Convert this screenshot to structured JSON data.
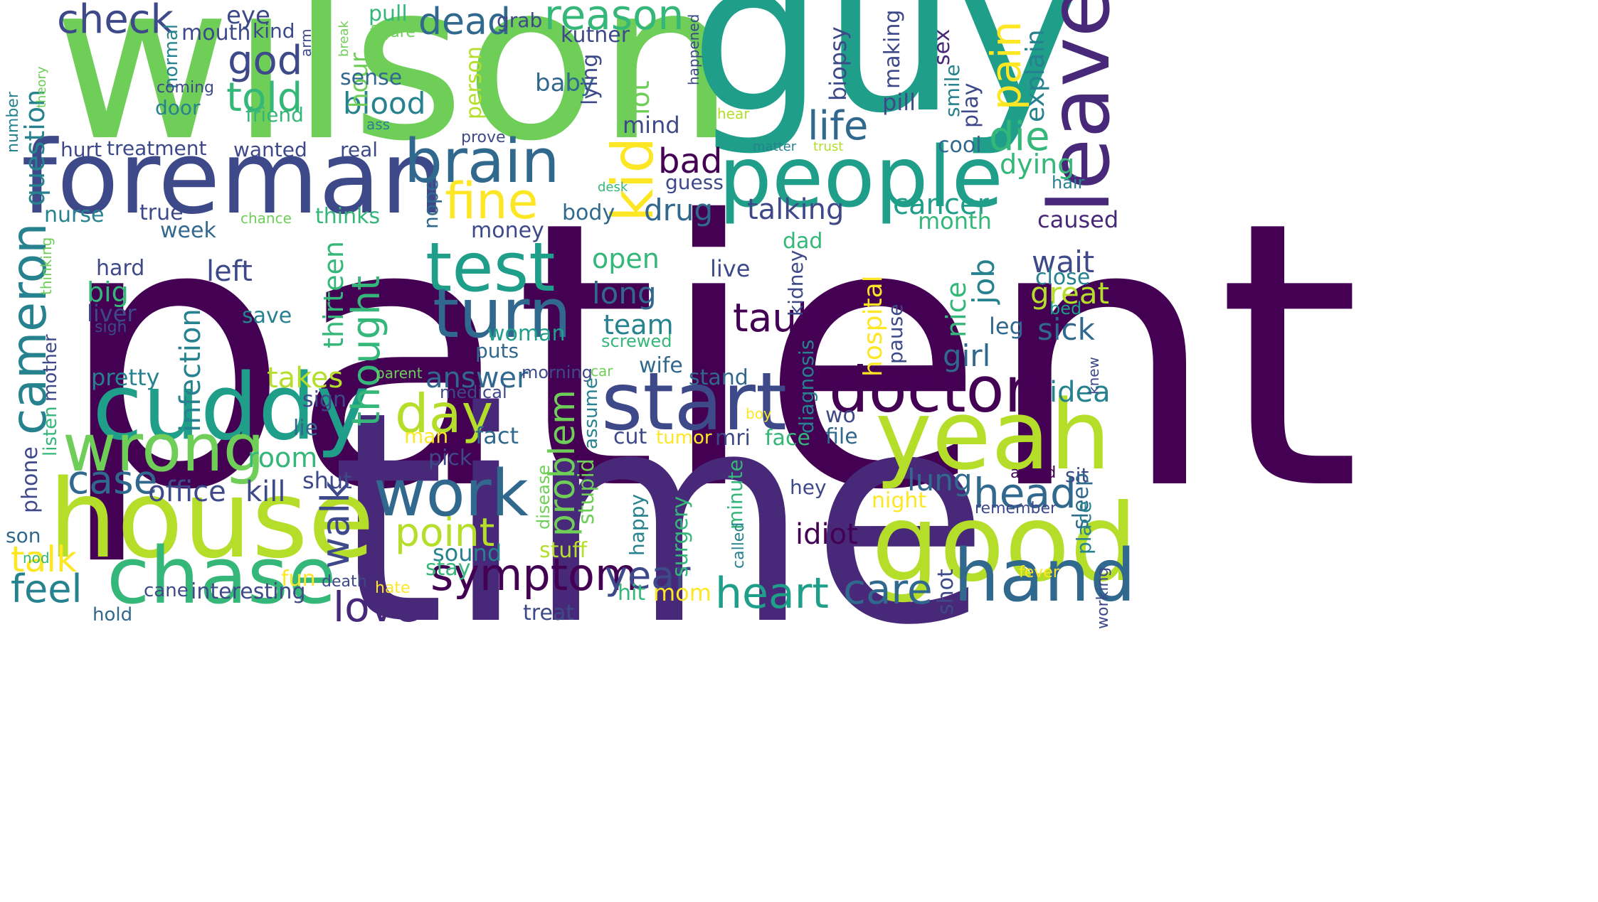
{
  "palette": [
    "#440154",
    "#482878",
    "#3e4989",
    "#31688e",
    "#26828e",
    "#1f9e89",
    "#35b779",
    "#6ece58",
    "#b5de2b",
    "#fde725"
  ],
  "words": [
    {
      "text": "patient",
      "color": "#440154"
    },
    {
      "text": "time",
      "color": "#482878"
    },
    {
      "text": "wilson",
      "color": "#6ece58"
    },
    {
      "text": "guy",
      "color": "#1f9e89"
    },
    {
      "text": "foreman",
      "color": "#3e4989"
    },
    {
      "text": "people",
      "color": "#1f9e89"
    },
    {
      "text": "leave",
      "color": "#482878"
    },
    {
      "text": "house",
      "color": "#b5de2b"
    },
    {
      "text": "cuddy",
      "color": "#1f9e89"
    },
    {
      "text": "start",
      "color": "#3e4989"
    },
    {
      "text": "yeah",
      "color": "#b5de2b"
    },
    {
      "text": "good",
      "color": "#b5de2b"
    },
    {
      "text": "chase",
      "color": "#35b779"
    },
    {
      "text": "work",
      "color": "#31688e"
    },
    {
      "text": "hand",
      "color": "#31688e"
    },
    {
      "text": "wrong",
      "color": "#6ece58"
    },
    {
      "text": "doctor",
      "color": "#440154"
    },
    {
      "text": "test",
      "color": "#1f9e89"
    },
    {
      "text": "turn",
      "color": "#31688e"
    },
    {
      "text": "brain",
      "color": "#31688e"
    },
    {
      "text": "cameron",
      "color": "#26828e"
    },
    {
      "text": "kid",
      "color": "#fde725"
    },
    {
      "text": "fine",
      "color": "#fde725"
    },
    {
      "text": "day",
      "color": "#b5de2b"
    },
    {
      "text": "symptom",
      "color": "#440154"
    },
    {
      "text": "heart",
      "color": "#1f9e89"
    },
    {
      "text": "care",
      "color": "#31688e"
    },
    {
      "text": "head",
      "color": "#31688e"
    },
    {
      "text": "year",
      "color": "#3e4989"
    },
    {
      "text": "love",
      "color": "#482878"
    },
    {
      "text": "point",
      "color": "#b5de2b"
    },
    {
      "text": "case",
      "color": "#31688e"
    },
    {
      "text": "check",
      "color": "#3e4989"
    },
    {
      "text": "reason",
      "color": "#35b779"
    },
    {
      "text": "dead",
      "color": "#31688e"
    },
    {
      "text": "god",
      "color": "#3e4989"
    },
    {
      "text": "told",
      "color": "#35b779"
    },
    {
      "text": "life",
      "color": "#31688e"
    },
    {
      "text": "die",
      "color": "#35b779"
    },
    {
      "text": "pain",
      "color": "#fde725"
    },
    {
      "text": "taub",
      "color": "#440154"
    },
    {
      "text": "thought",
      "color": "#35b779"
    },
    {
      "text": "walk",
      "color": "#3e4989"
    },
    {
      "text": "problem",
      "color": "#6ece58"
    },
    {
      "text": "feel",
      "color": "#26828e"
    },
    {
      "text": "talk",
      "color": "#fde725"
    },
    {
      "text": "infection",
      "color": "#26828e"
    },
    {
      "text": "office",
      "color": "#3e4989"
    },
    {
      "text": "kill",
      "color": "#3e4989"
    },
    {
      "text": "idiot",
      "color": "#440154"
    },
    {
      "text": "lung",
      "color": "#31688e"
    },
    {
      "text": "bad",
      "color": "#440154"
    },
    {
      "text": "blood",
      "color": "#26828e"
    },
    {
      "text": "drug",
      "color": "#31688e"
    },
    {
      "text": "talking",
      "color": "#3e4989"
    },
    {
      "text": "cancer",
      "color": "#1f9e89"
    },
    {
      "text": "wait",
      "color": "#3e4989"
    },
    {
      "text": "sick",
      "color": "#31688e"
    },
    {
      "text": "girl",
      "color": "#31688e"
    },
    {
      "text": "great",
      "color": "#b5de2b"
    },
    {
      "text": "job",
      "color": "#26828e"
    },
    {
      "text": "idea",
      "color": "#26828e"
    },
    {
      "text": "answer",
      "color": "#31688e"
    },
    {
      "text": "takes",
      "color": "#b5de2b"
    },
    {
      "text": "left",
      "color": "#3e4989"
    },
    {
      "text": "long",
      "color": "#31688e"
    },
    {
      "text": "open",
      "color": "#35b779"
    },
    {
      "text": "team",
      "color": "#26828e"
    },
    {
      "text": "thirteen",
      "color": "#35b779"
    },
    {
      "text": "hospital",
      "color": "#fde725"
    },
    {
      "text": "dying",
      "color": "#35b779"
    },
    {
      "text": "explain",
      "color": "#26828e"
    },
    {
      "text": "question",
      "color": "#26828e"
    },
    {
      "text": "room",
      "color": "#35b779"
    },
    {
      "text": "big",
      "color": "#35b779"
    },
    {
      "text": "liver",
      "color": "#3e4989"
    },
    {
      "text": "eye",
      "color": "#3e4989"
    },
    {
      "text": "mouth",
      "color": "#3e4989"
    },
    {
      "text": "kind",
      "color": "#3e4989"
    },
    {
      "text": "pull",
      "color": "#35b779"
    },
    {
      "text": "grab",
      "color": "#3e4989"
    },
    {
      "text": "kutner",
      "color": "#3e4989"
    },
    {
      "text": "hour",
      "color": "#6ece58"
    },
    {
      "text": "baby",
      "color": "#31688e"
    },
    {
      "text": "sense",
      "color": "#31688e"
    },
    {
      "text": "lot",
      "color": "#6ece58"
    },
    {
      "text": "mind",
      "color": "#3e4989"
    },
    {
      "text": "lying",
      "color": "#3e4989"
    },
    {
      "text": "biopsy",
      "color": "#3e4989"
    },
    {
      "text": "making",
      "color": "#3e4989"
    },
    {
      "text": "pill",
      "color": "#3e4989"
    },
    {
      "text": "sex",
      "color": "#482878"
    },
    {
      "text": "smile",
      "color": "#26828e"
    },
    {
      "text": "play",
      "color": "#3e4989"
    },
    {
      "text": "cool",
      "color": "#31688e"
    },
    {
      "text": "hair",
      "color": "#26828e"
    },
    {
      "text": "caused",
      "color": "#482878"
    },
    {
      "text": "month",
      "color": "#35b779"
    },
    {
      "text": "close",
      "color": "#26828e"
    },
    {
      "text": "bed",
      "color": "#1f9e89"
    },
    {
      "text": "leg",
      "color": "#31688e"
    },
    {
      "text": "nice",
      "color": "#35b779"
    },
    {
      "text": "pause",
      "color": "#3e4989"
    },
    {
      "text": "diagnosis",
      "color": "#26828e"
    },
    {
      "text": "kidney",
      "color": "#3e4989"
    },
    {
      "text": "live",
      "color": "#3e4989"
    },
    {
      "text": "dad",
      "color": "#35b779"
    },
    {
      "text": "body",
      "color": "#31688e"
    },
    {
      "text": "money",
      "color": "#3e4989"
    },
    {
      "text": "guess",
      "color": "#3e4989"
    },
    {
      "text": "nope",
      "color": "#31688e"
    },
    {
      "text": "thinks",
      "color": "#35b779"
    },
    {
      "text": "true",
      "color": "#3e4989"
    },
    {
      "text": "week",
      "color": "#31688e"
    },
    {
      "text": "nurse",
      "color": "#26828e"
    },
    {
      "text": "hard",
      "color": "#3e4989"
    },
    {
      "text": "save",
      "color": "#26828e"
    },
    {
      "text": "woman",
      "color": "#1f9e89"
    },
    {
      "text": "puts",
      "color": "#31688e"
    },
    {
      "text": "screwed",
      "color": "#35b779"
    },
    {
      "text": "wife",
      "color": "#31688e"
    },
    {
      "text": "stand",
      "color": "#31688e"
    },
    {
      "text": "morning",
      "color": "#3e4989"
    },
    {
      "text": "car",
      "color": "#6ece58"
    },
    {
      "text": "parent",
      "color": "#6ece58"
    },
    {
      "text": "medical",
      "color": "#3e4989"
    },
    {
      "text": "pretty",
      "color": "#26828e"
    },
    {
      "text": "sign",
      "color": "#3e4989"
    },
    {
      "text": "lie",
      "color": "#31688e"
    },
    {
      "text": "fact",
      "color": "#31688e"
    },
    {
      "text": "man",
      "color": "#fde725"
    },
    {
      "text": "pick",
      "color": "#3e4989"
    },
    {
      "text": "shut",
      "color": "#3e4989"
    },
    {
      "text": "stupid",
      "color": "#6ece58"
    },
    {
      "text": "assume",
      "color": "#26828e"
    },
    {
      "text": "cut",
      "color": "#3e4989"
    },
    {
      "text": "tumor",
      "color": "#fde725"
    },
    {
      "text": "mri",
      "color": "#3e4989"
    },
    {
      "text": "face",
      "color": "#35b779"
    },
    {
      "text": "wo",
      "color": "#3e4989"
    },
    {
      "text": "file",
      "color": "#31688e"
    },
    {
      "text": "boy",
      "color": "#fde725"
    },
    {
      "text": "asked",
      "color": "#440154"
    },
    {
      "text": "sit",
      "color": "#3e4989"
    },
    {
      "text": "sleep",
      "color": "#31688e"
    },
    {
      "text": "place",
      "color": "#26828e"
    },
    {
      "text": "remember",
      "color": "#3e4989"
    },
    {
      "text": "fever",
      "color": "#fde725"
    },
    {
      "text": "working",
      "color": "#3e4989"
    },
    {
      "text": "knew",
      "color": "#3e4989"
    },
    {
      "text": "hey",
      "color": "#3e4989"
    },
    {
      "text": "night",
      "color": "#fde725"
    },
    {
      "text": "minute",
      "color": "#35b779"
    },
    {
      "text": "called",
      "color": "#26828e"
    },
    {
      "text": "surgery",
      "color": "#35b779"
    },
    {
      "text": "happy",
      "color": "#26828e"
    },
    {
      "text": "disease",
      "color": "#6ece58"
    },
    {
      "text": "stuff",
      "color": "#b5de2b"
    },
    {
      "text": "sound",
      "color": "#26828e"
    },
    {
      "text": "stay",
      "color": "#35b779"
    },
    {
      "text": "hate",
      "color": "#fde725"
    },
    {
      "text": "death",
      "color": "#3e4989"
    },
    {
      "text": "hit",
      "color": "#35b779"
    },
    {
      "text": "mom",
      "color": "#fde725"
    },
    {
      "text": "treat",
      "color": "#3e4989"
    },
    {
      "text": "cane",
      "color": "#3e4989"
    },
    {
      "text": "interesting",
      "color": "#3e4989"
    },
    {
      "text": "hold",
      "color": "#31688e"
    },
    {
      "text": "fun",
      "color": "#fde725"
    },
    {
      "text": "shot",
      "color": "#3e4989"
    },
    {
      "text": "son",
      "color": "#31688e"
    },
    {
      "text": "nod",
      "color": "#35b779"
    },
    {
      "text": "phone",
      "color": "#3e4989"
    },
    {
      "text": "listen",
      "color": "#35b779"
    },
    {
      "text": "mother",
      "color": "#3e4989"
    },
    {
      "text": "thinking",
      "color": "#6ece58"
    },
    {
      "text": "sigh",
      "color": "#3e4989"
    },
    {
      "text": "hurt",
      "color": "#3e4989"
    },
    {
      "text": "treatment",
      "color": "#3e4989"
    },
    {
      "text": "wanted",
      "color": "#3e4989"
    },
    {
      "text": "real",
      "color": "#3e4989"
    },
    {
      "text": "number",
      "color": "#26828e"
    },
    {
      "text": "door",
      "color": "#26828e"
    },
    {
      "text": "normal",
      "color": "#26828e"
    },
    {
      "text": "coming",
      "color": "#3e4989"
    },
    {
      "text": "arm",
      "color": "#3e4989"
    },
    {
      "text": "theory",
      "color": "#6ece58"
    },
    {
      "text": "friend",
      "color": "#35b779"
    },
    {
      "text": "ass",
      "color": "#26828e"
    },
    {
      "text": "prove",
      "color": "#3e4989"
    },
    {
      "text": "figure",
      "color": "#6ece58"
    },
    {
      "text": "break",
      "color": "#6ece58"
    },
    {
      "text": "person",
      "color": "#b5de2b"
    },
    {
      "text": "chance",
      "color": "#6ece58"
    },
    {
      "text": "desk",
      "color": "#35b779"
    },
    {
      "text": "happened",
      "color": "#3e4989"
    },
    {
      "text": "hear",
      "color": "#b5de2b"
    },
    {
      "text": "matter",
      "color": "#26828e"
    },
    {
      "text": "trust",
      "color": "#b5de2b"
    }
  ]
}
